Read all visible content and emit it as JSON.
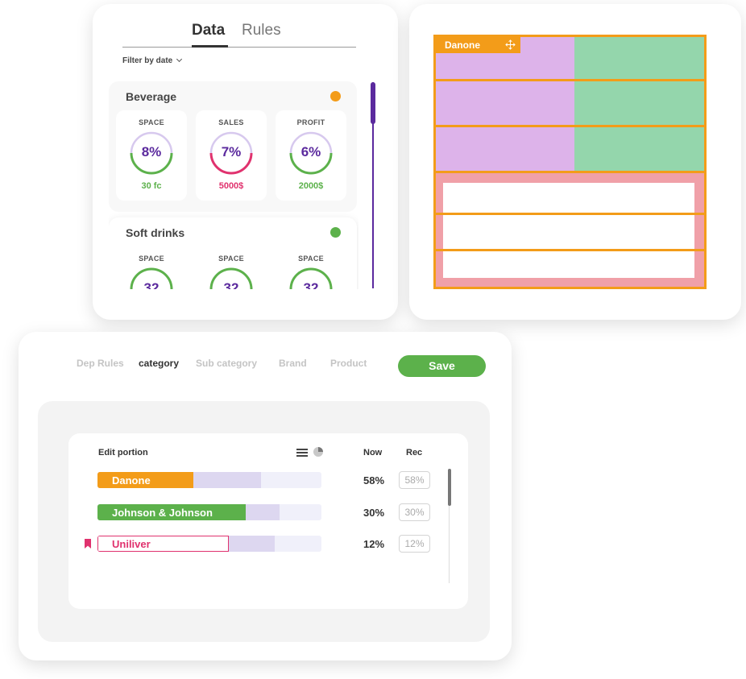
{
  "data_panel": {
    "tabs": [
      {
        "label": "Data",
        "active": true
      },
      {
        "label": "Rules",
        "active": false
      }
    ],
    "filter_label": "Filter by date",
    "categories": [
      {
        "name": "Beverage",
        "dot_color": "#f39c19",
        "metrics": [
          {
            "label": "SPACE",
            "value": "8%",
            "sub": "30 fc",
            "sub_color": "#5cb14b",
            "ring_color": "#5cb14b"
          },
          {
            "label": "SALES",
            "value": "7%",
            "sub": "5000$",
            "sub_color": "#e0326e",
            "ring_color": "#e0326e"
          },
          {
            "label": "PROFIT",
            "value": "6%",
            "sub": "2000$",
            "sub_color": "#5cb14b",
            "ring_color": "#5cb14b"
          }
        ]
      },
      {
        "name": "Soft drinks",
        "dot_color": "#5cb14b",
        "metrics": [
          {
            "label": "SPACE",
            "value": "32",
            "ring_color": "#5cb14b"
          },
          {
            "label": "SPACE",
            "value": "32",
            "ring_color": "#5cb14b"
          },
          {
            "label": "SPACE",
            "value": "32",
            "ring_color": "#5cb14b"
          }
        ]
      }
    ]
  },
  "planogram": {
    "tag_label": "Danone",
    "colors": {
      "frame": "#f39c19",
      "danone_fill": "#ddb3ea",
      "jj_fill": "#94d6ac",
      "uniliver_fill": "#f0a0a8",
      "empty": "#ffffff"
    }
  },
  "rules": {
    "tabs": [
      {
        "label": "Dep Rules",
        "active": false
      },
      {
        "label": "category",
        "active": true
      },
      {
        "label": "Sub category",
        "active": false
      },
      {
        "label": "Brand",
        "active": false
      },
      {
        "label": "Product",
        "active": false
      }
    ],
    "save_label": "Save",
    "portion": {
      "title": "Edit portion",
      "col_now": "Now",
      "col_rec": "Rec",
      "rows": [
        {
          "brand": "Danone",
          "now": "58%",
          "rec": "58%",
          "now_fraction": 0.43,
          "rec_fraction": 0.73,
          "color": "#f39c19",
          "bookmarked": false,
          "outlined": false
        },
        {
          "brand": "Johnson & Johnson",
          "now": "30%",
          "rec": "30%",
          "now_fraction": 0.66,
          "rec_fraction": 0.81,
          "color": "#5cb14b",
          "bookmarked": false,
          "outlined": false
        },
        {
          "brand": "Uniliver",
          "now": "12%",
          "rec": "12%",
          "now_fraction": 0.587,
          "rec_fraction": 0.79,
          "color": "#e0326e",
          "bookmarked": true,
          "outlined": true
        }
      ]
    }
  }
}
